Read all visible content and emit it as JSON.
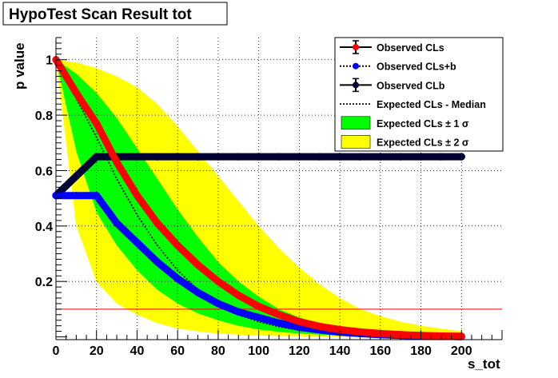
{
  "chart_data": {
    "type": "line",
    "title": "HypoTest Scan Result tot",
    "xlabel": "s_tot",
    "ylabel": "p value",
    "xlim": [
      0,
      220
    ],
    "ylim": [
      -0.01,
      1.08
    ],
    "x_ticks": [
      0,
      20,
      40,
      60,
      80,
      100,
      120,
      140,
      160,
      180,
      200
    ],
    "y_ticks": [
      0.2,
      0.4,
      0.6,
      0.8,
      1
    ],
    "y_tick_labels": [
      "0.2",
      "0.4",
      "0.6",
      "0.8",
      "1"
    ],
    "grid": true,
    "legend_position": "top-right",
    "legend": [
      {
        "label": "Observed CLs",
        "kind": "marker-errorbar",
        "color": "#ff0000"
      },
      {
        "label": "Observed CLs+b",
        "kind": "marker-dotted",
        "color": "#0000ff"
      },
      {
        "label": "Observed CLb",
        "kind": "marker-errorbar",
        "color": "#000033"
      },
      {
        "label": "Expected CLs - Median",
        "kind": "dotted-line",
        "color": "#000000"
      },
      {
        "label": "Expected CLs ± 1 σ",
        "kind": "fill",
        "color": "#00ff00"
      },
      {
        "label": "Expected CLs ± 2 σ",
        "kind": "fill",
        "color": "#ffff00"
      }
    ],
    "x": [
      0,
      10,
      20,
      30,
      40,
      50,
      60,
      70,
      80,
      90,
      100,
      110,
      120,
      130,
      140,
      150,
      160,
      170,
      180,
      190,
      200
    ],
    "series": [
      {
        "name": "Observed CLs",
        "color": "#ff0000",
        "values": [
          1.0,
          0.88,
          0.77,
          0.63,
          0.51,
          0.41,
          0.33,
          0.26,
          0.2,
          0.15,
          0.11,
          0.08,
          0.055,
          0.038,
          0.026,
          0.018,
          0.012,
          0.008,
          0.005,
          0.003,
          0.002
        ]
      },
      {
        "name": "Observed CLs+b",
        "color": "#0000ff",
        "values": [
          0.51,
          0.51,
          0.51,
          0.41,
          0.34,
          0.27,
          0.21,
          0.16,
          0.12,
          0.09,
          0.07,
          0.05,
          0.035,
          0.025,
          0.017,
          0.012,
          0.008,
          0.005,
          0.003,
          0.002,
          0.001
        ]
      },
      {
        "name": "Observed CLb",
        "color": "#000033",
        "values": [
          0.51,
          0.58,
          0.65,
          0.65,
          0.65,
          0.65,
          0.65,
          0.65,
          0.65,
          0.65,
          0.65,
          0.65,
          0.65,
          0.65,
          0.65,
          0.65,
          0.65,
          0.65,
          0.65,
          0.65,
          0.65
        ]
      },
      {
        "name": "Expected CLs - Median",
        "color": "#000000",
        "values": [
          1.0,
          0.86,
          0.72,
          0.57,
          0.44,
          0.33,
          0.24,
          0.17,
          0.12,
          0.08,
          0.055,
          0.037,
          0.024,
          0.015,
          0.01,
          0.006,
          0.004,
          0.002,
          0.001,
          0.001,
          0.0
        ]
      }
    ],
    "bands": {
      "two_sigma_upper": [
        1.0,
        0.99,
        0.97,
        0.94,
        0.9,
        0.84,
        0.76,
        0.67,
        0.58,
        0.49,
        0.4,
        0.32,
        0.25,
        0.19,
        0.14,
        0.1,
        0.075,
        0.055,
        0.04,
        0.03,
        0.02
      ],
      "one_sigma_upper": [
        1.0,
        0.95,
        0.88,
        0.79,
        0.68,
        0.57,
        0.46,
        0.36,
        0.27,
        0.2,
        0.145,
        0.1,
        0.07,
        0.048,
        0.032,
        0.022,
        0.015,
        0.01,
        0.007,
        0.005,
        0.003
      ],
      "one_sigma_lower": [
        1.0,
        0.67,
        0.45,
        0.33,
        0.24,
        0.17,
        0.12,
        0.085,
        0.06,
        0.04,
        0.027,
        0.018,
        0.012,
        0.008,
        0.005,
        0.003,
        0.002,
        0.001,
        0.001,
        0.0,
        0.0
      ],
      "two_sigma_lower": [
        1.0,
        0.4,
        0.2,
        0.12,
        0.08,
        0.05,
        0.03,
        0.02,
        0.012,
        0.008,
        0.005,
        0.003,
        0.002,
        0.001,
        0.0,
        0.0,
        0.0,
        0.0,
        0.0,
        0.0,
        0.0
      ]
    },
    "reference_line": {
      "y": 0.1,
      "color": "#ff0000"
    }
  }
}
